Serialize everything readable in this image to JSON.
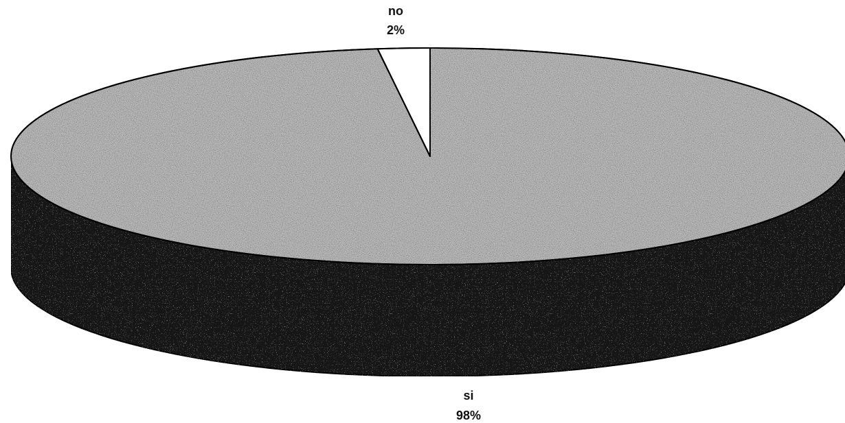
{
  "chart_data": {
    "type": "pie",
    "style": "3d",
    "title": "",
    "slices": [
      {
        "label": "si",
        "value": 98,
        "value_label": "98%",
        "color_top": "#c8c8c8",
        "color_side": "#141414"
      },
      {
        "label": "no",
        "value": 2,
        "value_label": "2%",
        "color_top": "#ffffff",
        "color_side": "#ffffff"
      }
    ],
    "legend": "none"
  }
}
